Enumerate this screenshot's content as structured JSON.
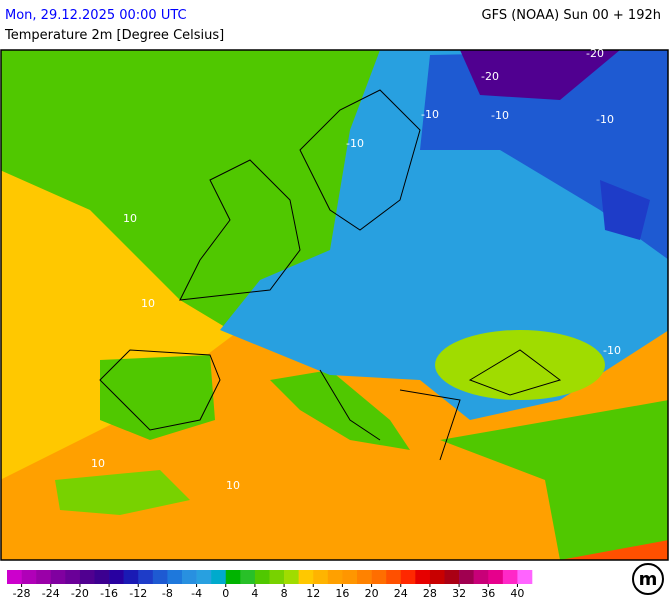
{
  "header": {
    "datetime": "Mon, 29.12.2025 00:00 UTC",
    "model": "GFS (NOAA) Sun 00 + 192h",
    "parameter": "Temperature 2m [Degree Celsius]"
  },
  "map": {
    "contour_labels": [
      "-20",
      "-20",
      "-10",
      "-10",
      "-10",
      "-10",
      "-10",
      "10",
      "10",
      "10",
      "10"
    ]
  },
  "legend": {
    "range": [
      -30,
      42
    ],
    "colors": [
      "#cc00cc",
      "#b000b8",
      "#9a00a8",
      "#8000a0",
      "#6a0098",
      "#500090",
      "#3c0090",
      "#2800a0",
      "#1a1ab4",
      "#1e3cc8",
      "#1e5ad2",
      "#1e78dc",
      "#2890e0",
      "#28a0e0",
      "#00aacc",
      "#00b400",
      "#28c028",
      "#50c800",
      "#78d200",
      "#a0dc00",
      "#ffc800",
      "#ffb400",
      "#ffa000",
      "#ff9600",
      "#ff8200",
      "#ff6e00",
      "#ff5000",
      "#ff2800",
      "#e60000",
      "#c80000",
      "#aa0014",
      "#a00050",
      "#c80078",
      "#e6008c",
      "#ff28c8",
      "#ff64ff"
    ],
    "ticks": [
      -28,
      -24,
      -20,
      -16,
      -12,
      -8,
      -4,
      0,
      4,
      8,
      12,
      16,
      20,
      24,
      28,
      32,
      36,
      40
    ]
  },
  "logo": "m"
}
